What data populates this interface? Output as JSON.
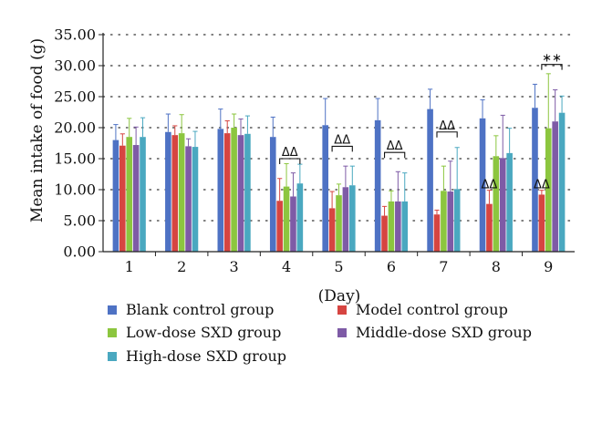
{
  "chart_data": {
    "type": "bar",
    "xlabel": "(Day)",
    "ylabel": "Mean intake of food (g)",
    "ylim": [
      0,
      35
    ],
    "yticks": [
      "0.00",
      "5.00",
      "10.00",
      "15.00",
      "20.00",
      "25.00",
      "30.00",
      "35.00"
    ],
    "grid": "horizontal dotted",
    "legend_position": "bottom",
    "categories": [
      "1",
      "2",
      "3",
      "4",
      "5",
      "6",
      "7",
      "8",
      "9"
    ],
    "series": [
      {
        "name": "Blank control group",
        "color": "#4E72C4",
        "values": [
          18.0,
          19.3,
          19.8,
          18.5,
          20.4,
          21.2,
          23.0,
          21.5,
          23.2
        ],
        "errors": [
          2.5,
          2.9,
          3.2,
          3.2,
          4.3,
          3.5,
          3.2,
          3.0,
          3.8
        ]
      },
      {
        "name": "Model control group",
        "color": "#D64541",
        "values": [
          17.1,
          18.8,
          19.1,
          8.2,
          7.0,
          5.8,
          6.0,
          7.7,
          9.2
        ],
        "errors": [
          1.9,
          1.5,
          2.0,
          3.6,
          2.7,
          1.5,
          0.7,
          2.2,
          0.7
        ]
      },
      {
        "name": "Low-dose SXD group",
        "color": "#8CC63F",
        "values": [
          18.5,
          19.1,
          20.0,
          10.5,
          9.1,
          8.1,
          9.8,
          15.4,
          19.9
        ],
        "errors": [
          3.0,
          3.0,
          2.2,
          3.7,
          1.8,
          1.7,
          4.0,
          3.3,
          8.8
        ]
      },
      {
        "name": "Middle-dose SXD group",
        "color": "#7E5BA6",
        "values": [
          17.2,
          17.0,
          18.8,
          8.9,
          10.4,
          8.1,
          9.7,
          15.1,
          21.0
        ],
        "errors": [
          2.9,
          1.2,
          2.6,
          3.8,
          3.4,
          4.8,
          4.9,
          6.9,
          5.1
        ]
      },
      {
        "name": "High-dose SXD group",
        "color": "#4AA8C0",
        "values": [
          18.5,
          16.9,
          19.0,
          11.0,
          10.7,
          8.1,
          10.1,
          15.9,
          22.4
        ],
        "errors": [
          3.1,
          2.5,
          2.9,
          3.1,
          3.1,
          4.6,
          6.7,
          4.0,
          2.7
        ]
      }
    ],
    "annotations": [
      {
        "text": "ΔΔ",
        "category": "4",
        "type": "bracket",
        "y": 15.0
      },
      {
        "text": "ΔΔ",
        "category": "5",
        "type": "bracket",
        "y": 17.0
      },
      {
        "text": "ΔΔ",
        "category": "6",
        "type": "bracket",
        "y": 16.0
      },
      {
        "text": "ΔΔ",
        "category": "7",
        "type": "bracket",
        "y": 19.3
      },
      {
        "text": "ΔΔ",
        "category": "8",
        "type": "label",
        "series": 1,
        "y": 10.2
      },
      {
        "text": "ΔΔ",
        "category": "9",
        "type": "label",
        "series": 1,
        "y": 10.2
      },
      {
        "text": "∗∗",
        "category": "9",
        "type": "bracket",
        "y": 30.2
      }
    ]
  }
}
